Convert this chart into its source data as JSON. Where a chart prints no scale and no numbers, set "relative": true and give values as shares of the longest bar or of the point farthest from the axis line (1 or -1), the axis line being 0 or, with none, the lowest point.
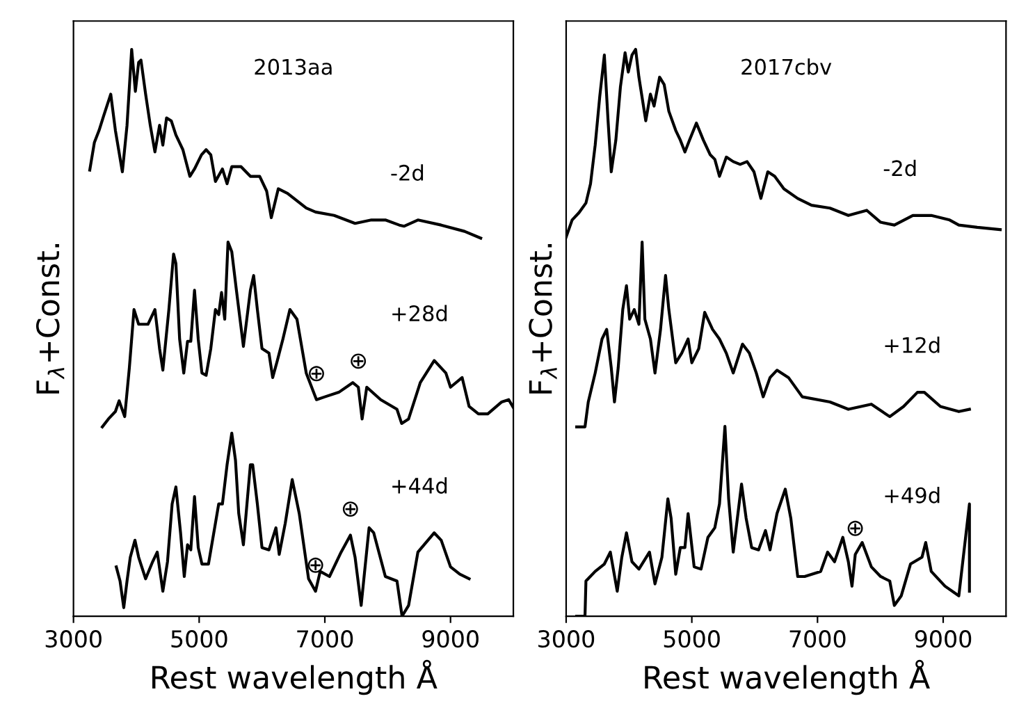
{
  "chart_data": [
    {
      "type": "line",
      "title": "2013aa",
      "xlabel": "Rest wavelength Å",
      "ylabel": "F$_{λ}$+Const.",
      "relative": true,
      "xlim": [
        3000,
        10000
      ],
      "xticks": [
        3000,
        5000,
        7000,
        9000
      ],
      "tick_labels": "x",
      "grid": false,
      "series": [
        {
          "name": "-2d",
          "color": "#000000",
          "x": [
            3259,
            3333,
            3407,
            3481,
            3593,
            3667,
            3778,
            3852,
            3926,
            3985,
            4037,
            4074,
            4148,
            4222,
            4296,
            4370,
            4422,
            4481,
            4556,
            4630,
            4741,
            4852,
            4926,
            5037,
            5111,
            5185,
            5259,
            5370,
            5444,
            5519,
            5667,
            5815,
            5963,
            6074,
            6148,
            6259,
            6407,
            6704,
            6852,
            7148,
            7481,
            7741,
            7963,
            8185,
            8259,
            8481,
            8852,
            9222,
            9481
          ],
          "values": [
            0.787,
            0.836,
            0.857,
            0.883,
            0.921,
            0.857,
            0.784,
            0.866,
            1.0,
            0.926,
            0.977,
            0.981,
            0.921,
            0.866,
            0.819,
            0.866,
            0.831,
            0.879,
            0.874,
            0.849,
            0.823,
            0.776,
            0.789,
            0.814,
            0.823,
            0.814,
            0.767,
            0.789,
            0.763,
            0.793,
            0.793,
            0.776,
            0.776,
            0.75,
            0.703,
            0.754,
            0.746,
            0.72,
            0.713,
            0.707,
            0.693,
            0.699,
            0.699,
            0.69,
            0.688,
            0.699,
            0.69,
            0.679,
            0.667
          ]
        },
        {
          "name": "+28d",
          "color": "#000000",
          "x": [
            3459,
            3556,
            3667,
            3726,
            3815,
            3889,
            3963,
            4037,
            4185,
            4296,
            4370,
            4422,
            4518,
            4593,
            4630,
            4689,
            4755,
            4815,
            4867,
            4926,
            4985,
            5044,
            5111,
            5185,
            5259,
            5311,
            5356,
            5407,
            5459,
            5519,
            5593,
            5704,
            5815,
            5867,
            5926,
            6000,
            6111,
            6170,
            6244,
            6333,
            6444,
            6556,
            6704,
            6867,
            7000,
            7222,
            7444,
            7533,
            7593,
            7667,
            7889,
            8148,
            8222,
            8333,
            8519,
            8741,
            8926,
            9000,
            9185,
            9296,
            9444,
            9593,
            9815,
            9926,
            10000
          ],
          "values": [
            0.334,
            0.348,
            0.361,
            0.38,
            0.352,
            0.438,
            0.541,
            0.515,
            0.515,
            0.541,
            0.472,
            0.434,
            0.541,
            0.639,
            0.622,
            0.489,
            0.429,
            0.485,
            0.485,
            0.575,
            0.489,
            0.429,
            0.425,
            0.472,
            0.541,
            0.532,
            0.571,
            0.524,
            0.66,
            0.643,
            0.575,
            0.476,
            0.575,
            0.601,
            0.541,
            0.472,
            0.464,
            0.421,
            0.451,
            0.489,
            0.541,
            0.524,
            0.429,
            0.382,
            0.387,
            0.395,
            0.412,
            0.404,
            0.348,
            0.404,
            0.382,
            0.365,
            0.34,
            0.348,
            0.412,
            0.451,
            0.429,
            0.404,
            0.421,
            0.37,
            0.357,
            0.357,
            0.378,
            0.382,
            0.368
          ]
        },
        {
          "name": "+44d",
          "color": "#000000",
          "x": [
            3681,
            3741,
            3800,
            3852,
            3904,
            3978,
            4037,
            4148,
            4259,
            4333,
            4422,
            4496,
            4570,
            4630,
            4704,
            4763,
            4815,
            4867,
            4926,
            4985,
            5044,
            5148,
            5259,
            5311,
            5370,
            5444,
            5519,
            5578,
            5630,
            5704,
            5815,
            5852,
            5926,
            6000,
            6111,
            6222,
            6274,
            6370,
            6481,
            6593,
            6741,
            6852,
            6926,
            7074,
            7259,
            7407,
            7481,
            7578,
            7704,
            7778,
            7963,
            8148,
            8229,
            8333,
            8481,
            8741,
            8852,
            9000,
            9148,
            9296
          ],
          "values": [
            0.087,
            0.062,
            0.015,
            0.062,
            0.104,
            0.134,
            0.104,
            0.066,
            0.096,
            0.113,
            0.044,
            0.096,
            0.198,
            0.228,
            0.147,
            0.07,
            0.126,
            0.117,
            0.211,
            0.121,
            0.092,
            0.092,
            0.164,
            0.198,
            0.198,
            0.267,
            0.323,
            0.275,
            0.181,
            0.126,
            0.267,
            0.267,
            0.198,
            0.121,
            0.117,
            0.156,
            0.109,
            0.164,
            0.241,
            0.181,
            0.066,
            0.044,
            0.079,
            0.07,
            0.113,
            0.143,
            0.104,
            0.019,
            0.156,
            0.147,
            0.07,
            0.062,
            0.0,
            0.019,
            0.113,
            0.147,
            0.134,
            0.087,
            0.074,
            0.066
          ]
        }
      ],
      "annotations": [
        {
          "text": "⊕",
          "x": 6867,
          "y": 0.382
        },
        {
          "text": "⊕",
          "x": 7533,
          "y": 0.404
        },
        {
          "text": "⊕",
          "x": 6852,
          "y": 0.044
        },
        {
          "text": "⊕",
          "x": 7407,
          "y": 0.143
        }
      ]
    },
    {
      "type": "line",
      "title": "2017cbv",
      "xlabel": "Rest wavelength Å",
      "ylabel": "F$_{λ}$+Const.",
      "relative": true,
      "xlim": [
        3000,
        10000
      ],
      "xticks": [
        3000,
        5000,
        7000,
        9000
      ],
      "tick_labels": "x",
      "grid": false,
      "series": [
        {
          "name": "-2d",
          "color": "#000000",
          "x": [
            3000,
            3095,
            3205,
            3315,
            3388,
            3462,
            3535,
            3608,
            3667,
            3718,
            3791,
            3864,
            3938,
            3989,
            4048,
            4106,
            4158,
            4267,
            4341,
            4399,
            4487,
            4560,
            4634,
            4744,
            4817,
            4890,
            4963,
            5073,
            5183,
            5293,
            5366,
            5440,
            5549,
            5659,
            5769,
            5879,
            5989,
            6099,
            6209,
            6319,
            6465,
            6685,
            6905,
            7198,
            7491,
            7784,
            8004,
            8223,
            8517,
            8810,
            9103,
            9249,
            9542,
            9908
          ],
          "values": [
            0.669,
            0.699,
            0.712,
            0.729,
            0.763,
            0.831,
            0.917,
            0.99,
            0.874,
            0.784,
            0.84,
            0.934,
            0.994,
            0.96,
            0.99,
            1.0,
            0.951,
            0.874,
            0.921,
            0.9,
            0.951,
            0.938,
            0.891,
            0.857,
            0.84,
            0.819,
            0.84,
            0.87,
            0.84,
            0.814,
            0.806,
            0.776,
            0.81,
            0.802,
            0.797,
            0.802,
            0.784,
            0.737,
            0.784,
            0.776,
            0.754,
            0.737,
            0.725,
            0.72,
            0.707,
            0.716,
            0.695,
            0.69,
            0.707,
            0.707,
            0.699,
            0.69,
            0.686,
            0.682
          ]
        },
        {
          "name": "+12d",
          "color": "#000000",
          "x": [
            3168,
            3300,
            3352,
            3462,
            3571,
            3645,
            3718,
            3769,
            3828,
            3901,
            3960,
            4011,
            4084,
            4158,
            4209,
            4253,
            4341,
            4414,
            4502,
            4582,
            4634,
            4744,
            4839,
            4941,
            5000,
            5110,
            5205,
            5330,
            5440,
            5549,
            5659,
            5806,
            5916,
            6026,
            6136,
            6245,
            6355,
            6538,
            6758,
            7198,
            7491,
            7857,
            8150,
            8370,
            8590,
            8700,
            8956,
            9249,
            9418
          ],
          "values": [
            0.334,
            0.334,
            0.378,
            0.429,
            0.489,
            0.506,
            0.438,
            0.378,
            0.438,
            0.541,
            0.583,
            0.524,
            0.541,
            0.515,
            0.66,
            0.524,
            0.489,
            0.429,
            0.506,
            0.601,
            0.541,
            0.447,
            0.464,
            0.489,
            0.447,
            0.472,
            0.536,
            0.506,
            0.489,
            0.464,
            0.429,
            0.48,
            0.464,
            0.429,
            0.387,
            0.421,
            0.434,
            0.421,
            0.387,
            0.378,
            0.365,
            0.374,
            0.352,
            0.37,
            0.395,
            0.395,
            0.37,
            0.361,
            0.365
          ]
        },
        {
          "name": "+49d",
          "color": "#000000",
          "x": [
            3168,
            3300,
            3315,
            3462,
            3608,
            3703,
            3813,
            3886,
            3960,
            4048,
            4158,
            4326,
            4414,
            4524,
            4619,
            4670,
            4744,
            4817,
            4890,
            4941,
            5037,
            5147,
            5256,
            5366,
            5440,
            5527,
            5586,
            5659,
            5791,
            5864,
            5952,
            6062,
            6172,
            6245,
            6355,
            6487,
            6575,
            6685,
            6795,
            7051,
            7161,
            7271,
            7403,
            7491,
            7549,
            7601,
            7711,
            7857,
            8004,
            8150,
            8223,
            8333,
            8480,
            8663,
            8722,
            8810,
            9029,
            9249,
            9418,
            9418
          ],
          "values": [
            0.0,
            0.0,
            0.062,
            0.079,
            0.092,
            0.113,
            0.044,
            0.104,
            0.147,
            0.096,
            0.083,
            0.113,
            0.057,
            0.104,
            0.207,
            0.173,
            0.074,
            0.121,
            0.121,
            0.181,
            0.087,
            0.083,
            0.139,
            0.156,
            0.198,
            0.335,
            0.207,
            0.113,
            0.233,
            0.173,
            0.121,
            0.117,
            0.151,
            0.117,
            0.181,
            0.224,
            0.173,
            0.07,
            0.07,
            0.079,
            0.113,
            0.096,
            0.139,
            0.096,
            0.053,
            0.109,
            0.13,
            0.087,
            0.07,
            0.062,
            0.019,
            0.036,
            0.092,
            0.104,
            0.13,
            0.079,
            0.053,
            0.036,
            0.198,
            0.044
          ]
        }
      ],
      "annotations": [
        {
          "text": "⊕",
          "x": 7601,
          "y": 0.109
        }
      ]
    }
  ]
}
